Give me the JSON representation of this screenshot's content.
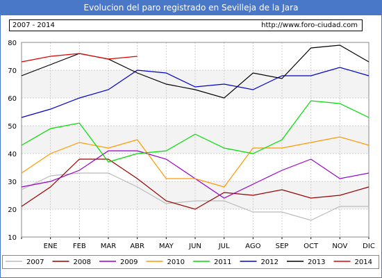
{
  "title": "Evolucion del paro registrado en Sevilleja de la Jara",
  "period": "2007 - 2014",
  "url": "http://www.foro-ciudad.com",
  "colors": {
    "title_bg": "#4a78c9",
    "grid": "#cccccc",
    "band": "#f3f3f3"
  },
  "chart_data": {
    "type": "line",
    "categories": [
      "",
      "ENE",
      "FEB",
      "MAR",
      "ABR",
      "MAY",
      "JUN",
      "JUL",
      "AGO",
      "SEP",
      "OCT",
      "NOV",
      "DIC"
    ],
    "ylim": [
      10,
      80
    ],
    "yticks": [
      10,
      20,
      30,
      40,
      50,
      60,
      70,
      80
    ],
    "grid": true,
    "legend": "bottom",
    "series": [
      {
        "name": "2007",
        "color": "#bbbbbb",
        "values": [
          27,
          32,
          33,
          33,
          28,
          22,
          23,
          23,
          19,
          19,
          16,
          21,
          21
        ]
      },
      {
        "name": "2008",
        "color": "#990000",
        "values": [
          21,
          28,
          38,
          38,
          31,
          23,
          20,
          26,
          25,
          27,
          24,
          25,
          28
        ]
      },
      {
        "name": "2009",
        "color": "#9900cc",
        "values": [
          28,
          30,
          34,
          41,
          41,
          38,
          31,
          24,
          29,
          34,
          38,
          31,
          33
        ]
      },
      {
        "name": "2010",
        "color": "#ff9900",
        "values": [
          33,
          40,
          44,
          42,
          45,
          31,
          31,
          28,
          42,
          42,
          44,
          46,
          43
        ]
      },
      {
        "name": "2011",
        "color": "#00dd00",
        "values": [
          43,
          49,
          51,
          37,
          40,
          41,
          47,
          42,
          40,
          45,
          59,
          58,
          53
        ]
      },
      {
        "name": "2012",
        "color": "#0000cc",
        "values": [
          53,
          56,
          60,
          63,
          70,
          69,
          64,
          65,
          63,
          68,
          68,
          71,
          68
        ]
      },
      {
        "name": "2013",
        "color": "#000000",
        "values": [
          68,
          72,
          76,
          74,
          69,
          65,
          63,
          60,
          69,
          67,
          78,
          79,
          73
        ]
      },
      {
        "name": "2014",
        "color": "#dd0000",
        "values": [
          73,
          75,
          76,
          74,
          75,
          null,
          null,
          null,
          null,
          null,
          null,
          null,
          null
        ]
      }
    ]
  }
}
